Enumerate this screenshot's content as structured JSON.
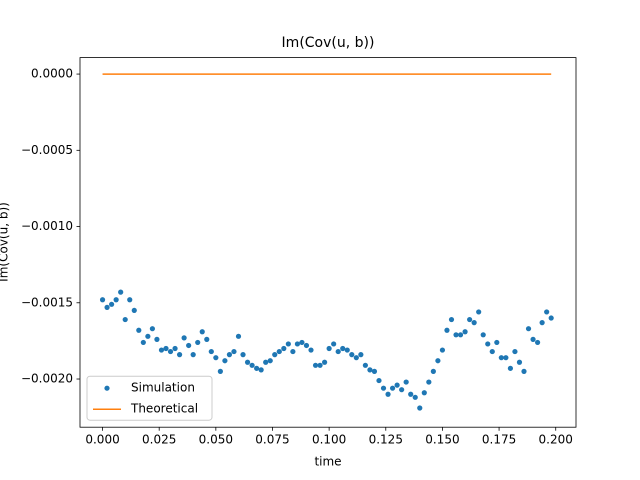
{
  "chart_data": {
    "type": "scatter-line",
    "title": "Im(Cov(u, b))",
    "x_label": "time",
    "y_label": "Im(Cov(u, b))",
    "xlim": [
      -0.00995,
      0.20895
    ],
    "ylim": [
      -0.002316,
      0.000108
    ],
    "xticks": [
      {
        "value": 0,
        "label": "0.000"
      },
      {
        "value": 0.025,
        "label": "0.025"
      },
      {
        "value": 0.05,
        "label": "0.050"
      },
      {
        "value": 0.075,
        "label": "0.075"
      },
      {
        "value": 0.1,
        "label": "0.100"
      },
      {
        "value": 0.125,
        "label": "0.125"
      },
      {
        "value": 0.15,
        "label": "0.150"
      },
      {
        "value": 0.175,
        "label": "0.175"
      },
      {
        "value": 0.2,
        "label": "0.200"
      }
    ],
    "yticks": [
      {
        "value": 0,
        "label": "0.0000"
      },
      {
        "value": -0.0005,
        "label": "−0.0005"
      },
      {
        "value": -0.001,
        "label": "−0.0010"
      },
      {
        "value": -0.0015,
        "label": "−0.0015"
      },
      {
        "value": -0.002,
        "label": "−0.0020"
      }
    ],
    "legend": "lower left",
    "series": [
      {
        "name": "Simulation",
        "kind": "points",
        "color": "#1f77b4",
        "x": [
          0,
          0.002,
          0.004,
          0.006,
          0.008,
          0.01,
          0.012,
          0.014,
          0.016,
          0.018,
          0.02,
          0.022,
          0.024,
          0.026,
          0.028,
          0.03,
          0.032,
          0.034,
          0.036,
          0.038,
          0.04,
          0.042,
          0.044,
          0.046,
          0.048,
          0.05,
          0.052,
          0.054,
          0.056,
          0.058,
          0.06,
          0.062,
          0.064,
          0.066,
          0.068,
          0.07,
          0.072,
          0.074,
          0.076,
          0.078,
          0.08,
          0.082,
          0.084,
          0.086,
          0.088,
          0.09,
          0.092,
          0.094,
          0.096,
          0.098,
          0.1,
          0.102,
          0.104,
          0.106,
          0.108,
          0.11,
          0.112,
          0.114,
          0.116,
          0.118,
          0.12,
          0.122,
          0.124,
          0.126,
          0.128,
          0.13,
          0.132,
          0.134,
          0.136,
          0.138,
          0.14,
          0.142,
          0.144,
          0.146,
          0.148,
          0.15,
          0.152,
          0.154,
          0.156,
          0.158,
          0.16,
          0.162,
          0.164,
          0.166,
          0.168,
          0.17,
          0.172,
          0.174,
          0.176,
          0.178,
          0.18,
          0.182,
          0.184,
          0.186,
          0.188,
          0.19,
          0.192,
          0.194,
          0.196,
          0.198
        ],
        "values": [
          -0.00148,
          -0.00153,
          -0.00151,
          -0.00148,
          -0.00143,
          -0.00161,
          -0.00148,
          -0.00155,
          -0.00168,
          -0.00176,
          -0.00172,
          -0.00167,
          -0.00174,
          -0.00181,
          -0.0018,
          -0.00182,
          -0.0018,
          -0.00184,
          -0.00173,
          -0.00178,
          -0.00184,
          -0.00176,
          -0.00169,
          -0.00174,
          -0.00182,
          -0.00186,
          -0.00195,
          -0.00188,
          -0.00184,
          -0.00182,
          -0.00172,
          -0.00184,
          -0.00189,
          -0.00191,
          -0.00193,
          -0.00194,
          -0.00189,
          -0.00188,
          -0.00184,
          -0.00182,
          -0.0018,
          -0.00177,
          -0.00182,
          -0.00177,
          -0.00176,
          -0.00178,
          -0.00181,
          -0.00191,
          -0.00191,
          -0.00189,
          -0.0018,
          -0.00177,
          -0.00182,
          -0.0018,
          -0.00181,
          -0.00184,
          -0.00186,
          -0.00184,
          -0.00191,
          -0.00194,
          -0.00195,
          -0.00201,
          -0.00206,
          -0.0021,
          -0.00206,
          -0.00204,
          -0.00207,
          -0.00202,
          -0.0021,
          -0.00212,
          -0.00219,
          -0.00209,
          -0.00202,
          -0.00195,
          -0.00188,
          -0.00181,
          -0.00168,
          -0.00161,
          -0.00171,
          -0.00171,
          -0.00169,
          -0.00161,
          -0.00163,
          -0.00156,
          -0.00171,
          -0.00177,
          -0.00182,
          -0.00176,
          -0.00186,
          -0.00186,
          -0.00193,
          -0.00182,
          -0.00189,
          -0.00195,
          -0.00167,
          -0.00174,
          -0.00176,
          -0.00163,
          -0.00156,
          -0.0016
        ]
      },
      {
        "name": "Theoretical",
        "kind": "line",
        "color": "#ff7f0e",
        "x": [
          0,
          0.198
        ],
        "values": [
          0,
          0
        ]
      }
    ]
  }
}
